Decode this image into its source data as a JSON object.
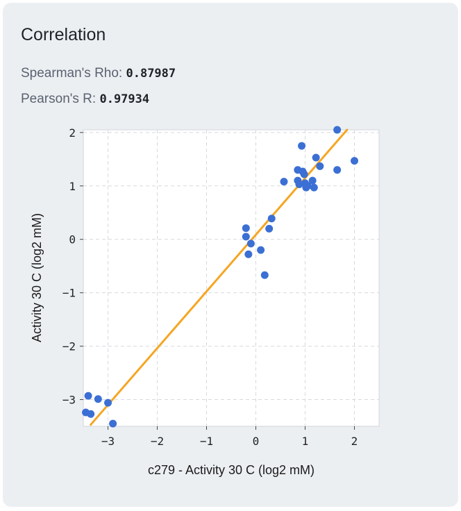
{
  "card": {
    "title": "Correlation",
    "background": "#eceff2"
  },
  "stats": {
    "spearman_label": "Spearman's Rho:",
    "spearman_value": "0.87987",
    "pearson_label": "Pearson's R:",
    "pearson_value": "0.97934"
  },
  "chart_data": {
    "type": "scatter",
    "xlabel": "c279 - Activity 30 C (log2 mM)",
    "ylabel": "Activity 30 C (log2 mM)",
    "xlim": [
      -3.5,
      2.5
    ],
    "ylim": [
      -3.5,
      2.05
    ],
    "xticks": [
      -3,
      -2,
      -1,
      0,
      1,
      2
    ],
    "yticks": [
      -3,
      -2,
      -1,
      0,
      1,
      2
    ],
    "xtick_labels": [
      "−3",
      "−2",
      "−1",
      "0",
      "1",
      "2"
    ],
    "ytick_labels": [
      "−3",
      "−2",
      "−1",
      "0",
      "1",
      "2"
    ],
    "grid": true,
    "point_color": "#3b6fd4",
    "line_color": "#f5a623",
    "points": [
      {
        "x": -3.4,
        "y": -2.93
      },
      {
        "x": -3.2,
        "y": -2.99
      },
      {
        "x": -3.0,
        "y": -3.06
      },
      {
        "x": -3.45,
        "y": -3.24
      },
      {
        "x": -3.35,
        "y": -3.27
      },
      {
        "x": -2.9,
        "y": -3.45
      },
      {
        "x": -0.2,
        "y": 0.21
      },
      {
        "x": -0.2,
        "y": 0.05
      },
      {
        "x": -0.1,
        "y": -0.08
      },
      {
        "x": -0.15,
        "y": -0.28
      },
      {
        "x": 0.1,
        "y": -0.2
      },
      {
        "x": 0.18,
        "y": -0.67
      },
      {
        "x": 0.27,
        "y": 0.2
      },
      {
        "x": 0.32,
        "y": 0.39
      },
      {
        "x": 0.57,
        "y": 1.08
      },
      {
        "x": 0.85,
        "y": 1.3
      },
      {
        "x": 0.85,
        "y": 1.1
      },
      {
        "x": 0.88,
        "y": 1.03
      },
      {
        "x": 0.93,
        "y": 1.75
      },
      {
        "x": 0.95,
        "y": 1.27
      },
      {
        "x": 0.98,
        "y": 1.22
      },
      {
        "x": 1.0,
        "y": 1.05
      },
      {
        "x": 1.02,
        "y": 0.97
      },
      {
        "x": 1.05,
        "y": 1.0
      },
      {
        "x": 1.15,
        "y": 1.1
      },
      {
        "x": 1.18,
        "y": 0.97
      },
      {
        "x": 1.22,
        "y": 1.53
      },
      {
        "x": 1.3,
        "y": 1.37
      },
      {
        "x": 1.65,
        "y": 1.3
      },
      {
        "x": 1.65,
        "y": 2.05
      },
      {
        "x": 2.0,
        "y": 1.47
      }
    ],
    "fit_line": {
      "x": [
        -3.35,
        1.85
      ],
      "y": [
        -3.47,
        2.05
      ]
    }
  }
}
